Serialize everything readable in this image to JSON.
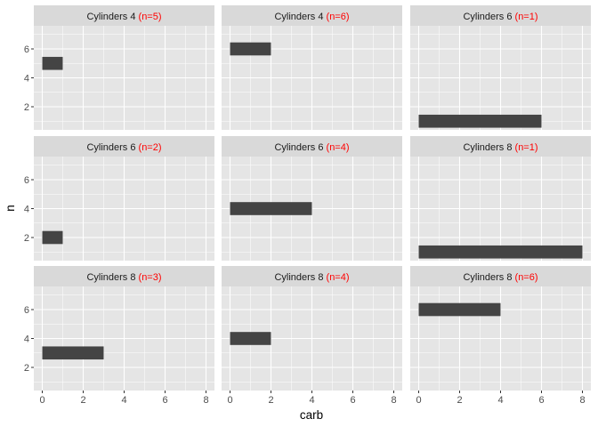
{
  "chart_data": {
    "type": "bar",
    "orientation": "horizontal",
    "facet_layout": "3x3",
    "xlabel": "carb",
    "ylabel": "n",
    "xlim": [
      0,
      8
    ],
    "ylim": [
      0.4,
      7.6
    ],
    "x_ticks": [
      "0",
      "2",
      "4",
      "6",
      "8"
    ],
    "y_ticks": [
      "2",
      "4",
      "6"
    ],
    "grid": true,
    "colors": {
      "bar": "#444444",
      "panel_background": "#e5e5e5",
      "strip_background": "#d9d9d9",
      "grid": "#ffffff",
      "n_label": "#ff0000"
    },
    "panels": [
      {
        "strip_label": "Cylinders 4",
        "strip_n": "(n=5)",
        "bars": [
          {
            "n": 5,
            "carb_min": 0,
            "carb_max": 1
          }
        ]
      },
      {
        "strip_label": "Cylinders 4",
        "strip_n": "(n=6)",
        "bars": [
          {
            "n": 6,
            "carb_min": 0,
            "carb_max": 2
          }
        ]
      },
      {
        "strip_label": "Cylinders 6",
        "strip_n": "(n=1)",
        "bars": [
          {
            "n": 1,
            "carb_min": 0,
            "carb_max": 6
          }
        ]
      },
      {
        "strip_label": "Cylinders 6",
        "strip_n": "(n=2)",
        "bars": [
          {
            "n": 2,
            "carb_min": 0,
            "carb_max": 1
          }
        ]
      },
      {
        "strip_label": "Cylinders 6",
        "strip_n": "(n=4)",
        "bars": [
          {
            "n": 4,
            "carb_min": 0,
            "carb_max": 4
          }
        ]
      },
      {
        "strip_label": "Cylinders 8",
        "strip_n": "(n=1)",
        "bars": [
          {
            "n": 1,
            "carb_min": 0,
            "carb_max": 8
          }
        ]
      },
      {
        "strip_label": "Cylinders 8",
        "strip_n": "(n=3)",
        "bars": [
          {
            "n": 3,
            "carb_min": 0,
            "carb_max": 3
          }
        ]
      },
      {
        "strip_label": "Cylinders 8",
        "strip_n": "(n=4)",
        "bars": [
          {
            "n": 4,
            "carb_min": 0,
            "carb_max": 2
          }
        ]
      },
      {
        "strip_label": "Cylinders 8",
        "strip_n": "(n=6)",
        "bars": [
          {
            "n": 6,
            "carb_min": 0,
            "carb_max": 4
          }
        ]
      }
    ]
  }
}
